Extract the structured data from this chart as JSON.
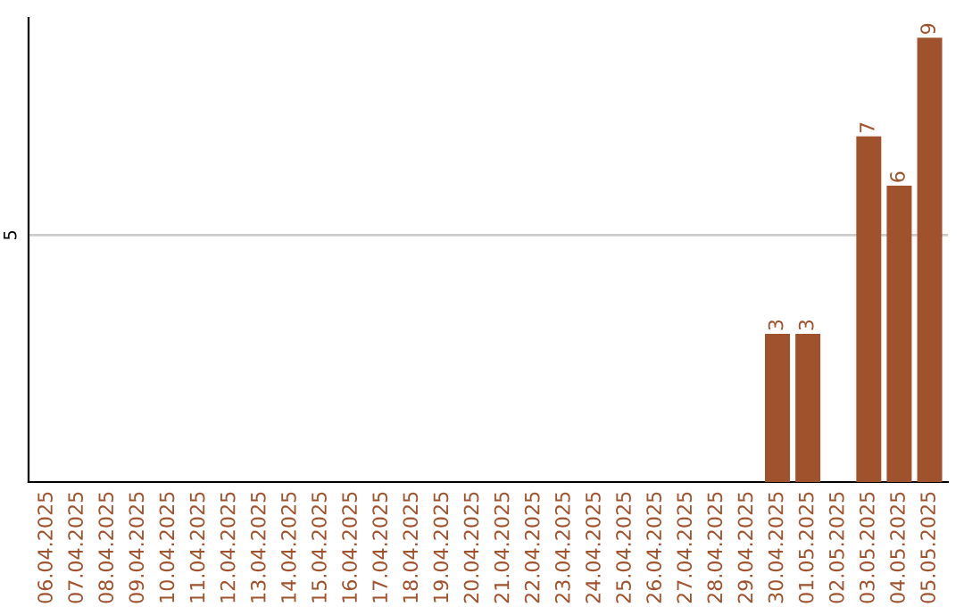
{
  "chart_data": {
    "type": "bar",
    "categories": [
      "06.04.2025",
      "07.04.2025",
      "08.04.2025",
      "09.04.2025",
      "10.04.2025",
      "11.04.2025",
      "12.04.2025",
      "13.04.2025",
      "14.04.2025",
      "15.04.2025",
      "16.04.2025",
      "17.04.2025",
      "18.04.2025",
      "19.04.2025",
      "20.04.2025",
      "21.04.2025",
      "22.04.2025",
      "23.04.2025",
      "24.04.2025",
      "25.04.2025",
      "26.04.2025",
      "27.04.2025",
      "28.04.2025",
      "29.04.2025",
      "30.04.2025",
      "01.05.2025",
      "02.05.2025",
      "03.05.2025",
      "04.05.2025",
      "05.05.2025"
    ],
    "values": [
      null,
      null,
      null,
      null,
      null,
      null,
      null,
      null,
      null,
      null,
      null,
      null,
      null,
      null,
      null,
      null,
      null,
      null,
      null,
      null,
      null,
      null,
      null,
      null,
      3,
      3,
      null,
      7,
      6,
      9
    ],
    "value_labels": [
      null,
      null,
      null,
      null,
      null,
      null,
      null,
      null,
      null,
      null,
      null,
      null,
      null,
      null,
      null,
      null,
      null,
      null,
      null,
      null,
      null,
      null,
      null,
      null,
      "3",
      "3",
      null,
      "7",
      "6",
      "9"
    ],
    "color": "#a0522d",
    "ylim": [
      0,
      9.4
    ],
    "yticks": [
      5
    ],
    "grid": "y"
  }
}
